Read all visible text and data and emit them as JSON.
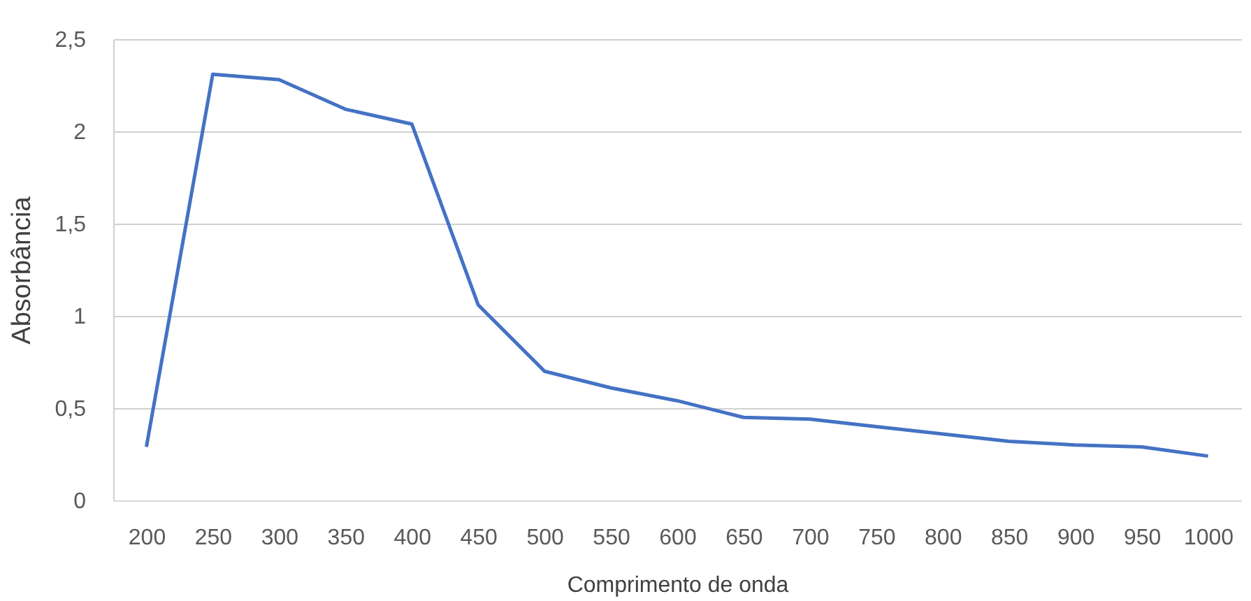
{
  "chart_data": {
    "type": "line",
    "xlabel": "Comprimento de onda",
    "ylabel": "Absorbância",
    "categories": [
      "200",
      "250",
      "300",
      "350",
      "400",
      "450",
      "500",
      "550",
      "600",
      "650",
      "700",
      "750",
      "800",
      "850",
      "900",
      "950",
      "1000"
    ],
    "series": [
      {
        "color": "#4472c4",
        "values": [
          0.29,
          2.31,
          2.28,
          2.12,
          2.04,
          1.06,
          0.7,
          0.61,
          0.54,
          0.45,
          0.44,
          0.4,
          0.36,
          0.32,
          0.3,
          0.29,
          0.24
        ]
      }
    ],
    "ylim": [
      0,
      2.5
    ],
    "yticks": [
      0,
      {
        "value": 0.5,
        "label": "0,5"
      },
      1,
      {
        "value": 1.5,
        "label": "1,5"
      },
      2,
      {
        "value": 2.5,
        "label": "2,5"
      }
    ],
    "grid": "y",
    "marker": "none",
    "line_style": "solid"
  }
}
